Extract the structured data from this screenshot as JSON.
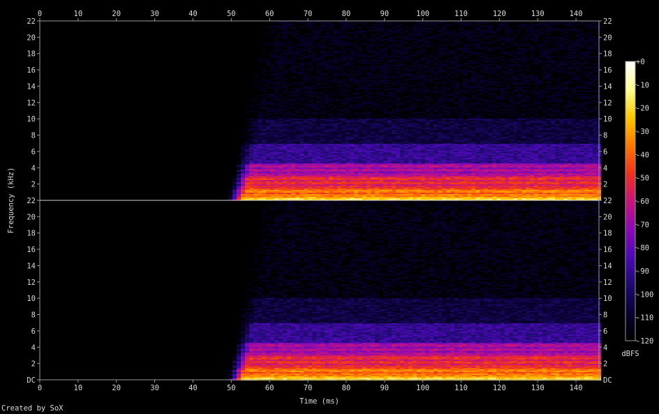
{
  "credit": "Created by SoX",
  "chart_data": {
    "type": "heatmap",
    "title": "",
    "xlabel": "Time (ms)",
    "ylabel": "Frequency (kHz)",
    "xlim": [
      0,
      146
    ],
    "ylim": [
      0,
      22
    ],
    "x_ticks": [
      "0",
      "10",
      "20",
      "30",
      "40",
      "50",
      "60",
      "70",
      "80",
      "90",
      "100",
      "110",
      "120",
      "130",
      "140"
    ],
    "y_ticks": [
      "DC",
      "2",
      "4",
      "6",
      "8",
      "10",
      "12",
      "14",
      "16",
      "18",
      "20",
      "22"
    ],
    "channels": 2,
    "colorbar": {
      "label": "dBFS",
      "ticks": [
        "+0",
        "-10",
        "-20",
        "-30",
        "-40",
        "-50",
        "-60",
        "-70",
        "-80",
        "-90",
        "-100",
        "-110",
        "-120"
      ],
      "range": [
        -120,
        0
      ],
      "colors": [
        "#000000",
        "#0a0030",
        "#1e0a6e",
        "#4b0ab4",
        "#8c0ab4",
        "#c8147a",
        "#f0321e",
        "#ff7800",
        "#ffc800",
        "#ffff96",
        "#ffffff"
      ]
    },
    "onset_ms": 49,
    "bands": [
      {
        "kHz": [
          0,
          0.5
        ],
        "dBFS": -20
      },
      {
        "kHz": [
          0.5,
          1.5
        ],
        "dBFS": -35
      },
      {
        "kHz": [
          1.5,
          3
        ],
        "dBFS": -50
      },
      {
        "kHz": [
          3,
          4.5
        ],
        "dBFS": -65
      },
      {
        "kHz": [
          4.5,
          7
        ],
        "dBFS": -90
      },
      {
        "kHz": [
          7,
          10
        ],
        "dBFS": -105
      },
      {
        "kHz": [
          10,
          22
        ],
        "dBFS": -115
      }
    ]
  }
}
